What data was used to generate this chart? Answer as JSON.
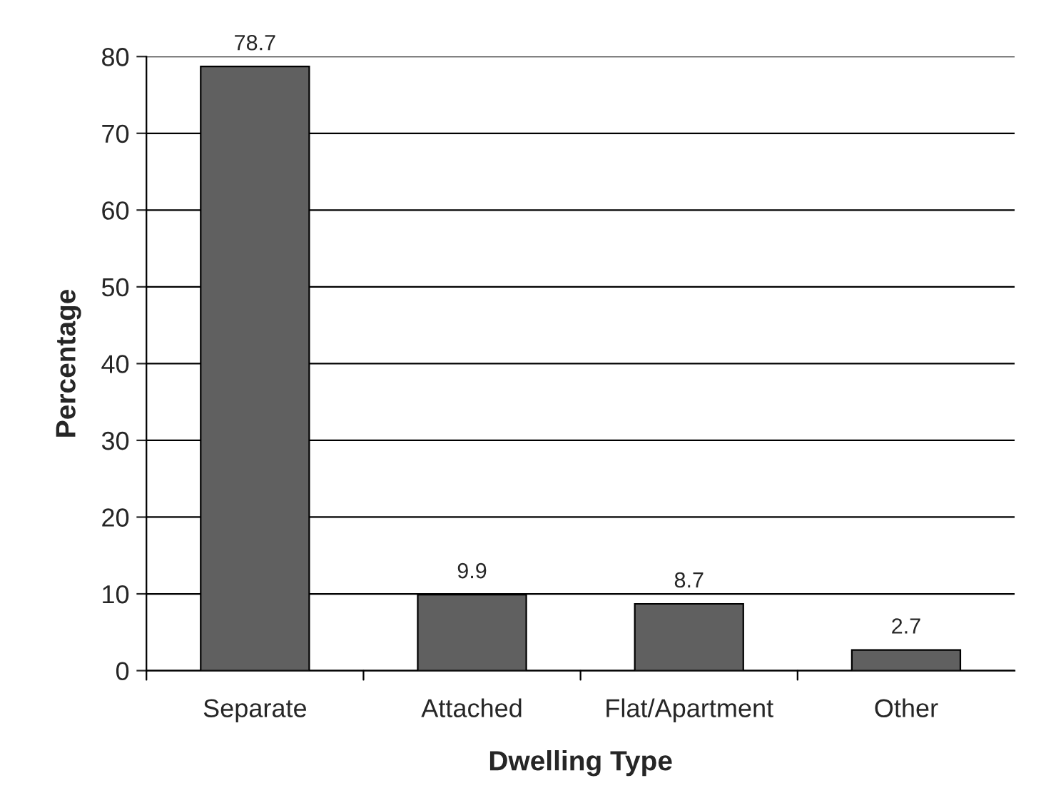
{
  "chart_data": {
    "type": "bar",
    "xlabel": "Dwelling Type",
    "ylabel": "Percentage",
    "categories": [
      "Separate",
      "Attached",
      "Flat/Apartment",
      "Other"
    ],
    "values": [
      78.7,
      9.9,
      8.7,
      2.7
    ],
    "color": "#606060",
    "ylim": [
      0,
      80
    ],
    "yticks": [
      0,
      10,
      20,
      30,
      40,
      50,
      60,
      70,
      80
    ],
    "grid": "y",
    "data_labels": true
  }
}
